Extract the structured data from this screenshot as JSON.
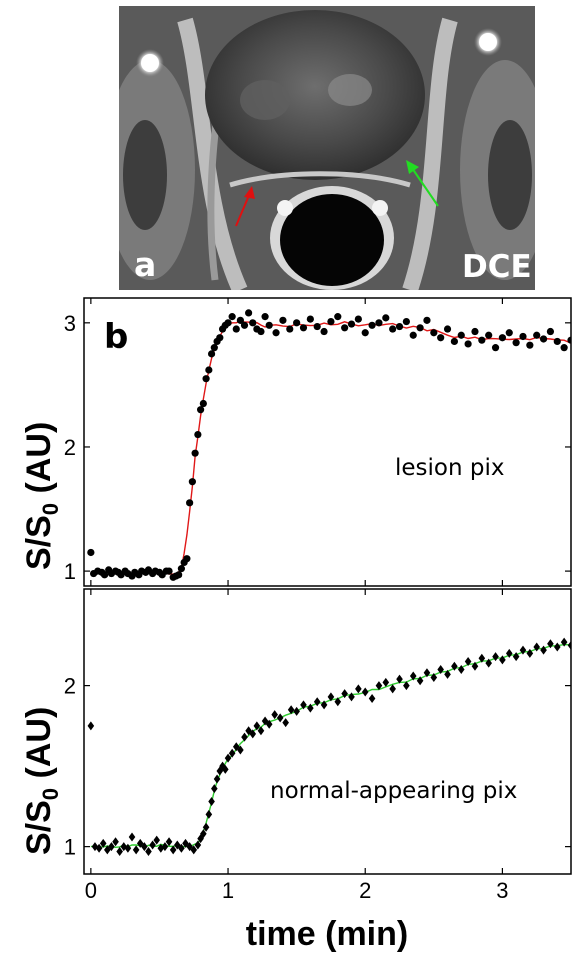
{
  "panel_a": {
    "letter": "a",
    "modality_label": "DCE"
  },
  "chart_data": [
    {
      "type": "scatter",
      "panel_letter": "b",
      "annotation": "lesion pix",
      "ylabel_main": "S/S",
      "ylabel_sub": "0",
      "ylabel_unit": "(AU)",
      "xlim": [
        -0.05,
        3.5
      ],
      "ylim": [
        0.88,
        3.2
      ],
      "yticks": [
        1,
        2,
        3
      ],
      "marker": "circle",
      "fit_color": "#e01818",
      "points": {
        "x": [
          0.0,
          0.02,
          0.05,
          0.08,
          0.1,
          0.13,
          0.15,
          0.18,
          0.2,
          0.22,
          0.25,
          0.27,
          0.3,
          0.32,
          0.35,
          0.37,
          0.4,
          0.42,
          0.45,
          0.47,
          0.5,
          0.52,
          0.55,
          0.57,
          0.6,
          0.62,
          0.64,
          0.66,
          0.68,
          0.7,
          0.72,
          0.74,
          0.76,
          0.78,
          0.8,
          0.82,
          0.84,
          0.86,
          0.88,
          0.9,
          0.92,
          0.94,
          0.96,
          0.98,
          1.0,
          1.03,
          1.06,
          1.09,
          1.12,
          1.15,
          1.18,
          1.21,
          1.24,
          1.27,
          1.3,
          1.35,
          1.4,
          1.45,
          1.5,
          1.55,
          1.6,
          1.65,
          1.7,
          1.75,
          1.8,
          1.85,
          1.9,
          1.95,
          2.0,
          2.05,
          2.1,
          2.15,
          2.2,
          2.25,
          2.3,
          2.35,
          2.4,
          2.45,
          2.5,
          2.55,
          2.6,
          2.65,
          2.7,
          2.75,
          2.8,
          2.85,
          2.9,
          2.95,
          3.0,
          3.05,
          3.1,
          3.15,
          3.2,
          3.25,
          3.3,
          3.35,
          3.4,
          3.45,
          3.5
        ],
        "y": [
          1.15,
          0.98,
          1.0,
          0.99,
          0.97,
          1.01,
          0.98,
          1.0,
          0.99,
          0.97,
          1.0,
          0.98,
          0.96,
          0.99,
          0.97,
          1.0,
          0.99,
          1.01,
          0.98,
          1.0,
          0.99,
          0.97,
          1.0,
          1.0,
          0.95,
          0.96,
          0.97,
          1.02,
          1.07,
          1.1,
          1.55,
          1.72,
          1.95,
          2.1,
          2.3,
          2.35,
          2.55,
          2.62,
          2.75,
          2.8,
          2.85,
          2.88,
          2.95,
          2.98,
          3.0,
          3.05,
          2.95,
          3.02,
          2.98,
          3.08,
          3.0,
          2.95,
          2.93,
          3.05,
          2.98,
          2.92,
          3.02,
          2.95,
          3.0,
          2.96,
          3.03,
          2.97,
          2.93,
          3.01,
          3.05,
          2.96,
          2.99,
          3.03,
          2.92,
          2.98,
          3.0,
          3.04,
          2.95,
          2.97,
          3.01,
          2.9,
          2.96,
          3.02,
          2.92,
          2.88,
          2.95,
          2.85,
          2.9,
          2.83,
          2.93,
          2.86,
          2.9,
          2.8,
          2.88,
          2.92,
          2.84,
          2.89,
          2.82,
          2.9,
          2.87,
          2.93,
          2.85,
          2.8,
          2.86
        ]
      }
    },
    {
      "type": "scatter",
      "annotation": "normal-appearing pix",
      "ylabel_main": "S/S",
      "ylabel_sub": "0",
      "ylabel_unit": "(AU)",
      "xlabel": "time (min)",
      "xlim": [
        -0.05,
        3.5
      ],
      "ylim": [
        0.83,
        2.6
      ],
      "yticks": [
        1,
        2
      ],
      "xticks": [
        0,
        1,
        2,
        3
      ],
      "marker": "diamond",
      "fit_color": "#2ecc2e",
      "points": {
        "x": [
          0.0,
          0.03,
          0.06,
          0.09,
          0.12,
          0.15,
          0.18,
          0.21,
          0.24,
          0.27,
          0.3,
          0.33,
          0.36,
          0.39,
          0.42,
          0.45,
          0.48,
          0.51,
          0.54,
          0.57,
          0.6,
          0.63,
          0.66,
          0.69,
          0.72,
          0.75,
          0.78,
          0.8,
          0.82,
          0.84,
          0.86,
          0.88,
          0.9,
          0.92,
          0.94,
          0.96,
          0.98,
          1.0,
          1.03,
          1.06,
          1.09,
          1.12,
          1.15,
          1.18,
          1.21,
          1.24,
          1.27,
          1.3,
          1.34,
          1.38,
          1.42,
          1.46,
          1.5,
          1.55,
          1.6,
          1.65,
          1.7,
          1.75,
          1.8,
          1.85,
          1.9,
          1.95,
          2.0,
          2.05,
          2.1,
          2.15,
          2.2,
          2.25,
          2.3,
          2.35,
          2.4,
          2.45,
          2.5,
          2.55,
          2.6,
          2.65,
          2.7,
          2.75,
          2.8,
          2.85,
          2.9,
          2.95,
          3.0,
          3.05,
          3.1,
          3.15,
          3.2,
          3.25,
          3.3,
          3.35,
          3.4,
          3.45,
          3.5
        ],
        "y": [
          1.75,
          1.0,
          0.99,
          1.02,
          0.98,
          1.0,
          1.03,
          0.97,
          1.0,
          0.99,
          1.06,
          0.98,
          1.02,
          1.0,
          0.97,
          1.01,
          1.04,
          0.99,
          1.0,
          1.03,
          0.98,
          1.01,
          0.99,
          1.02,
          1.0,
          0.98,
          1.01,
          1.05,
          1.08,
          1.12,
          1.2,
          1.28,
          1.36,
          1.42,
          1.47,
          1.5,
          1.48,
          1.55,
          1.58,
          1.62,
          1.6,
          1.68,
          1.72,
          1.7,
          1.75,
          1.72,
          1.78,
          1.76,
          1.82,
          1.8,
          1.77,
          1.85,
          1.84,
          1.88,
          1.86,
          1.9,
          1.88,
          1.93,
          1.9,
          1.95,
          1.93,
          1.98,
          1.96,
          1.92,
          2.0,
          2.02,
          1.98,
          2.04,
          2.0,
          2.06,
          2.03,
          2.08,
          2.05,
          2.1,
          2.07,
          2.12,
          2.1,
          2.15,
          2.12,
          2.17,
          2.14,
          2.18,
          2.16,
          2.2,
          2.18,
          2.22,
          2.2,
          2.24,
          2.22,
          2.26,
          2.24,
          2.27,
          2.25
        ]
      }
    }
  ]
}
